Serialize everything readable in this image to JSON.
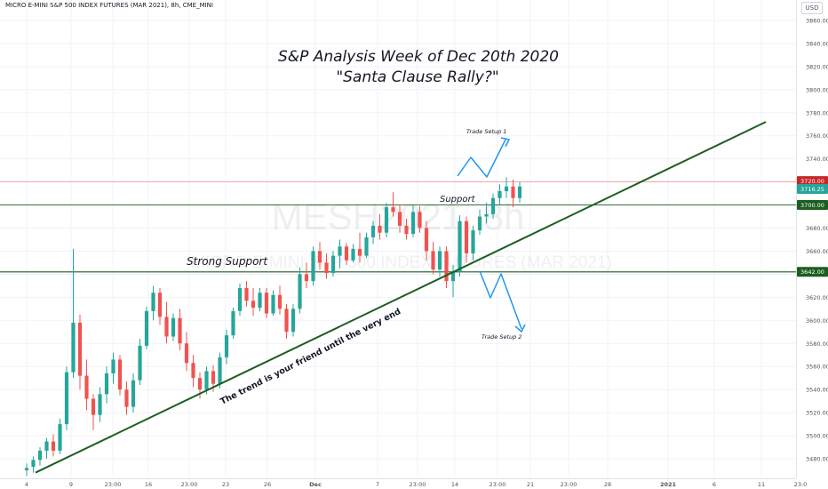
{
  "symbol_line": "MICRO E-MINI S&P 500 INDEX FUTURES (MAR 2021), 8h, CME_MINI",
  "currency": "USD",
  "watermark": {
    "symbol": "MESH2021, 8h",
    "name": "MICRO E-MINI S&P 500 INDEX FUTURES (MAR 2021)"
  },
  "colors": {
    "up": "#26a69a",
    "down": "#ef5350",
    "trendline": "#1b5e20",
    "arrow": "#2196f3",
    "resistance": "#ef9a9a",
    "support": "#1b5e20"
  },
  "chart_data": {
    "type": "candlestick",
    "title": "S&P Analysis Week of Dec 20th 2020",
    "subtitle": "\"Santa Clause Rally?\"",
    "ylim": [
      3465,
      3875
    ],
    "x_ticks": [
      "4",
      "9",
      "23:00",
      "16",
      "23:00",
      "23",
      "26",
      "Dec",
      "7",
      "23:00",
      "14",
      "23:00",
      "21",
      "23:00",
      "28",
      "2021",
      "6",
      "11",
      "23:0"
    ],
    "y_ticks": [
      "3480.00",
      "3500.00",
      "3520.00",
      "3540.00",
      "3560.00",
      "3580.00",
      "3600.00",
      "3620.00",
      "3640.00",
      "3660.00",
      "3680.00",
      "3700.00",
      "3720.00",
      "3740.00",
      "3760.00",
      "3780.00",
      "3800.00",
      "3820.00",
      "3840.00",
      "3860.00"
    ],
    "price_labels": [
      {
        "text": "3720.00",
        "value": 3720.0,
        "color": "#c62828"
      },
      {
        "text": "3716.25",
        "value": 3716.25,
        "color": "#26a69a"
      },
      {
        "text": "3700.00",
        "value": 3700.0,
        "color": "#1b5e20"
      },
      {
        "text": "3642.00",
        "value": 3642.0,
        "color": "#1b5e20"
      }
    ],
    "horizontal_lines": [
      {
        "name": "resistance",
        "value": 3720.0
      },
      {
        "name": "support",
        "value": 3700.0
      },
      {
        "name": "strong-support",
        "value": 3642.0
      }
    ],
    "trendline": {
      "from": 3468,
      "to": 3772
    },
    "annotations": {
      "strong_support": "Strong Support",
      "support": "Support",
      "trend": "The trend is your friend until the very end",
      "setup1": "Trade Setup 1",
      "setup2": "Trade Setup 2"
    },
    "candles": [
      {
        "o": 3470,
        "h": 3476,
        "l": 3465,
        "c": 3472
      },
      {
        "o": 3473,
        "h": 3482,
        "l": 3468,
        "c": 3479
      },
      {
        "o": 3479,
        "h": 3490,
        "l": 3474,
        "c": 3487
      },
      {
        "o": 3487,
        "h": 3498,
        "l": 3480,
        "c": 3495
      },
      {
        "o": 3495,
        "h": 3501,
        "l": 3482,
        "c": 3487
      },
      {
        "o": 3487,
        "h": 3515,
        "l": 3484,
        "c": 3510
      },
      {
        "o": 3510,
        "h": 3560,
        "l": 3505,
        "c": 3555
      },
      {
        "o": 3555,
        "h": 3662,
        "l": 3550,
        "c": 3598
      },
      {
        "o": 3598,
        "h": 3605,
        "l": 3540,
        "c": 3552
      },
      {
        "o": 3552,
        "h": 3566,
        "l": 3522,
        "c": 3532
      },
      {
        "o": 3532,
        "h": 3536,
        "l": 3505,
        "c": 3518
      },
      {
        "o": 3518,
        "h": 3542,
        "l": 3512,
        "c": 3536
      },
      {
        "o": 3536,
        "h": 3560,
        "l": 3528,
        "c": 3554
      },
      {
        "o": 3554,
        "h": 3572,
        "l": 3545,
        "c": 3566
      },
      {
        "o": 3566,
        "h": 3570,
        "l": 3535,
        "c": 3540
      },
      {
        "o": 3540,
        "h": 3547,
        "l": 3518,
        "c": 3525
      },
      {
        "o": 3525,
        "h": 3554,
        "l": 3520,
        "c": 3548
      },
      {
        "o": 3548,
        "h": 3584,
        "l": 3544,
        "c": 3578
      },
      {
        "o": 3578,
        "h": 3612,
        "l": 3575,
        "c": 3608
      },
      {
        "o": 3608,
        "h": 3630,
        "l": 3600,
        "c": 3624
      },
      {
        "o": 3624,
        "h": 3628,
        "l": 3596,
        "c": 3603
      },
      {
        "o": 3603,
        "h": 3616,
        "l": 3580,
        "c": 3586
      },
      {
        "o": 3586,
        "h": 3606,
        "l": 3582,
        "c": 3602
      },
      {
        "o": 3602,
        "h": 3610,
        "l": 3574,
        "c": 3580
      },
      {
        "o": 3580,
        "h": 3590,
        "l": 3556,
        "c": 3563
      },
      {
        "o": 3563,
        "h": 3570,
        "l": 3542,
        "c": 3550
      },
      {
        "o": 3550,
        "h": 3555,
        "l": 3532,
        "c": 3540
      },
      {
        "o": 3540,
        "h": 3560,
        "l": 3536,
        "c": 3556
      },
      {
        "o": 3556,
        "h": 3561,
        "l": 3538,
        "c": 3545
      },
      {
        "o": 3545,
        "h": 3572,
        "l": 3541,
        "c": 3568
      },
      {
        "o": 3568,
        "h": 3592,
        "l": 3562,
        "c": 3587
      },
      {
        "o": 3587,
        "h": 3611,
        "l": 3584,
        "c": 3608
      },
      {
        "o": 3608,
        "h": 3632,
        "l": 3604,
        "c": 3628
      },
      {
        "o": 3628,
        "h": 3634,
        "l": 3612,
        "c": 3617
      },
      {
        "o": 3617,
        "h": 3628,
        "l": 3604,
        "c": 3611
      },
      {
        "o": 3611,
        "h": 3628,
        "l": 3608,
        "c": 3624
      },
      {
        "o": 3624,
        "h": 3628,
        "l": 3602,
        "c": 3606
      },
      {
        "o": 3606,
        "h": 3626,
        "l": 3604,
        "c": 3622
      },
      {
        "o": 3622,
        "h": 3630,
        "l": 3605,
        "c": 3610
      },
      {
        "o": 3610,
        "h": 3614,
        "l": 3584,
        "c": 3590
      },
      {
        "o": 3590,
        "h": 3614,
        "l": 3586,
        "c": 3610
      },
      {
        "o": 3610,
        "h": 3646,
        "l": 3606,
        "c": 3640
      },
      {
        "o": 3640,
        "h": 3650,
        "l": 3628,
        "c": 3634
      },
      {
        "o": 3634,
        "h": 3664,
        "l": 3630,
        "c": 3660
      },
      {
        "o": 3660,
        "h": 3668,
        "l": 3644,
        "c": 3650
      },
      {
        "o": 3650,
        "h": 3658,
        "l": 3636,
        "c": 3641
      },
      {
        "o": 3641,
        "h": 3660,
        "l": 3638,
        "c": 3656
      },
      {
        "o": 3656,
        "h": 3670,
        "l": 3645,
        "c": 3664
      },
      {
        "o": 3664,
        "h": 3667,
        "l": 3648,
        "c": 3652
      },
      {
        "o": 3652,
        "h": 3666,
        "l": 3650,
        "c": 3662
      },
      {
        "o": 3662,
        "h": 3676,
        "l": 3650,
        "c": 3656
      },
      {
        "o": 3656,
        "h": 3676,
        "l": 3654,
        "c": 3672
      },
      {
        "o": 3672,
        "h": 3686,
        "l": 3666,
        "c": 3682
      },
      {
        "o": 3682,
        "h": 3692,
        "l": 3670,
        "c": 3676
      },
      {
        "o": 3676,
        "h": 3702,
        "l": 3672,
        "c": 3698
      },
      {
        "o": 3698,
        "h": 3711,
        "l": 3690,
        "c": 3694
      },
      {
        "o": 3694,
        "h": 3700,
        "l": 3676,
        "c": 3682
      },
      {
        "o": 3682,
        "h": 3688,
        "l": 3670,
        "c": 3675
      },
      {
        "o": 3675,
        "h": 3700,
        "l": 3672,
        "c": 3694
      },
      {
        "o": 3694,
        "h": 3699,
        "l": 3676,
        "c": 3680
      },
      {
        "o": 3680,
        "h": 3686,
        "l": 3652,
        "c": 3660
      },
      {
        "o": 3660,
        "h": 3668,
        "l": 3640,
        "c": 3644
      },
      {
        "o": 3644,
        "h": 3664,
        "l": 3638,
        "c": 3660
      },
      {
        "o": 3660,
        "h": 3664,
        "l": 3628,
        "c": 3634
      },
      {
        "o": 3634,
        "h": 3648,
        "l": 3620,
        "c": 3642
      },
      {
        "o": 3642,
        "h": 3691,
        "l": 3638,
        "c": 3686
      },
      {
        "o": 3686,
        "h": 3690,
        "l": 3650,
        "c": 3658
      },
      {
        "o": 3658,
        "h": 3682,
        "l": 3652,
        "c": 3678
      },
      {
        "o": 3678,
        "h": 3696,
        "l": 3674,
        "c": 3690
      },
      {
        "o": 3690,
        "h": 3702,
        "l": 3684,
        "c": 3692
      },
      {
        "o": 3692,
        "h": 3710,
        "l": 3688,
        "c": 3706
      },
      {
        "o": 3706,
        "h": 3718,
        "l": 3700,
        "c": 3712
      },
      {
        "o": 3712,
        "h": 3724,
        "l": 3706,
        "c": 3716
      },
      {
        "o": 3716,
        "h": 3722,
        "l": 3698,
        "c": 3706
      },
      {
        "o": 3706,
        "h": 3720,
        "l": 3702,
        "c": 3716
      }
    ]
  }
}
